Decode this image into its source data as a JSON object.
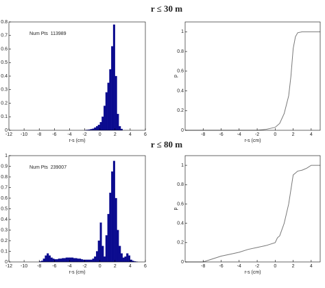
{
  "headings": [
    "r ≤ 30 m",
    "r ≤ 80 m"
  ],
  "chart_data": [
    {
      "type": "histogram",
      "annotation": "Num Pts  113989",
      "xlabel": "r-s (cm)",
      "color": "#0b0b8f",
      "bins": [
        -2,
        -1.75,
        -1.5,
        -1.25,
        -1,
        -0.75,
        -0.5,
        -0.25,
        0,
        0.25,
        0.5,
        0.75,
        1,
        1.25,
        1.5,
        1.75,
        2,
        2.25,
        2.5,
        2.75,
        3
      ],
      "values": [
        0.002,
        0.003,
        0.005,
        0.008,
        0.012,
        0.02,
        0.03,
        0.04,
        0.06,
        0.1,
        0.18,
        0.28,
        0.35,
        0.45,
        0.62,
        0.78,
        0.4,
        0.12,
        0.03,
        0.01
      ],
      "xlim": [
        -12,
        6
      ],
      "xticks": [
        -12,
        -10,
        -8,
        -6,
        -4,
        -2,
        0,
        2,
        4,
        6
      ],
      "ylim": [
        0,
        0.8
      ],
      "yticks": [
        0,
        0.1,
        0.2,
        0.3,
        0.4,
        0.5,
        0.6,
        0.7,
        0.8
      ]
    },
    {
      "type": "line",
      "xlabel": "r-s (cm)",
      "ylabel": "p",
      "color": "#777777",
      "x": [
        -10,
        -2,
        -1,
        0,
        0.5,
        1,
        1.5,
        1.75,
        2,
        2.25,
        2.5,
        3,
        5
      ],
      "values": [
        0,
        0,
        0.01,
        0.03,
        0.07,
        0.17,
        0.35,
        0.55,
        0.83,
        0.95,
        0.99,
        1,
        1
      ],
      "xlim": [
        -10,
        5
      ],
      "xticks": [
        -8,
        -6,
        -4,
        -2,
        0,
        2,
        4
      ],
      "ylim": [
        0,
        1.1
      ],
      "yticks": [
        0,
        0.2,
        0.4,
        0.6,
        0.8,
        1
      ]
    },
    {
      "type": "histogram",
      "annotation": "Num Pts  239007",
      "xlabel": "r-s (cm)",
      "color": "#0b0b8f",
      "bins": [
        -8,
        -7.75,
        -7.5,
        -7.25,
        -7,
        -6.75,
        -6.5,
        -6.25,
        -6,
        -5.75,
        -5.5,
        -5.25,
        -5,
        -4.75,
        -4.5,
        -4.25,
        -4,
        -3.75,
        -3.5,
        -3.25,
        -3,
        -2.75,
        -2.5,
        -2.25,
        -2,
        -1.75,
        -1.5,
        -1.25,
        -1,
        -0.75,
        -0.5,
        -0.25,
        0,
        0.25,
        0.5,
        0.75,
        1,
        1.25,
        1.5,
        1.75,
        2,
        2.25,
        2.5,
        2.75,
        3,
        3.25,
        3.5,
        3.75,
        4,
        4.25,
        4.5,
        4.75,
        5
      ],
      "values": [
        0.005,
        0.01,
        0.03,
        0.06,
        0.08,
        0.06,
        0.04,
        0.03,
        0.025,
        0.025,
        0.03,
        0.03,
        0.035,
        0.035,
        0.04,
        0.04,
        0.04,
        0.04,
        0.035,
        0.035,
        0.03,
        0.03,
        0.025,
        0.02,
        0.02,
        0.02,
        0.02,
        0.02,
        0.03,
        0.05,
        0.1,
        0.2,
        0.37,
        0.15,
        0.05,
        0.25,
        0.45,
        0.65,
        0.85,
        0.95,
        0.6,
        0.3,
        0.15,
        0.08,
        0.04,
        0.05,
        0.08,
        0.06,
        0.02,
        0.01,
        0.005,
        0.002
      ],
      "xlim": [
        -12,
        6
      ],
      "xticks": [
        -12,
        -10,
        -8,
        -6,
        -4,
        -2,
        0,
        2,
        4,
        6
      ],
      "ylim": [
        0,
        1
      ],
      "yticks": [
        0,
        0.1,
        0.2,
        0.3,
        0.4,
        0.5,
        0.6,
        0.7,
        0.8,
        0.9,
        1
      ]
    },
    {
      "type": "line",
      "xlabel": "r-s (cm)",
      "ylabel": "p",
      "color": "#777777",
      "x": [
        -10,
        -8,
        -7,
        -6,
        -5,
        -4,
        -3,
        -2,
        -1,
        0,
        0.25,
        0.5,
        1,
        1.5,
        1.75,
        2,
        2.5,
        3,
        3.5,
        4,
        5
      ],
      "values": [
        0,
        0,
        0.03,
        0.06,
        0.08,
        0.1,
        0.13,
        0.15,
        0.17,
        0.2,
        0.25,
        0.27,
        0.4,
        0.6,
        0.75,
        0.9,
        0.94,
        0.95,
        0.97,
        1,
        1
      ],
      "xlim": [
        -10,
        5
      ],
      "xticks": [
        -8,
        -6,
        -4,
        -2,
        0,
        2,
        4
      ],
      "ylim": [
        0,
        1.1
      ],
      "yticks": [
        0,
        0.2,
        0.4,
        0.6,
        0.8,
        1
      ]
    }
  ]
}
